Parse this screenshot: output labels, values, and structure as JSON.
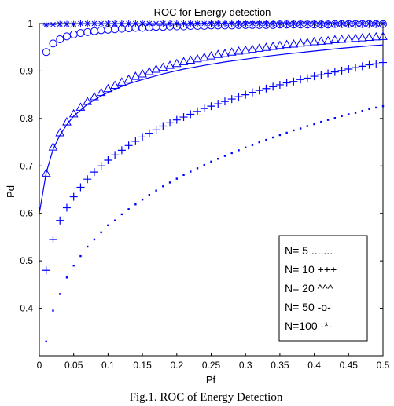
{
  "chart_data": {
    "type": "scatter",
    "title": "ROC for Energy detection",
    "xlabel": "Pf",
    "ylabel": "Pd",
    "xlim": [
      0,
      0.5
    ],
    "ylim": [
      0.3,
      1.0
    ],
    "xticks": [
      "0",
      "0.05",
      "0.1",
      "0.15",
      "0.2",
      "0.25",
      "0.3",
      "0.35",
      "0.4",
      "0.45",
      "0.5"
    ],
    "yticks": [
      "0.4",
      "0.5",
      "0.6",
      "0.7",
      "0.8",
      "0.9",
      "1"
    ],
    "legend_position": "bottom-right",
    "color": "#0000ff",
    "x": [
      0.01,
      0.02,
      0.03,
      0.04,
      0.05,
      0.06,
      0.07,
      0.08,
      0.09,
      0.1,
      0.11,
      0.12,
      0.13,
      0.14,
      0.15,
      0.16,
      0.17,
      0.18,
      0.19,
      0.2,
      0.21,
      0.22,
      0.23,
      0.24,
      0.25,
      0.26,
      0.27,
      0.28,
      0.29,
      0.3,
      0.31,
      0.32,
      0.33,
      0.34,
      0.35,
      0.36,
      0.37,
      0.38,
      0.39,
      0.4,
      0.41,
      0.42,
      0.43,
      0.44,
      0.45,
      0.46,
      0.47,
      0.48,
      0.49,
      0.5
    ],
    "series": [
      {
        "name": "N= 5 .......",
        "marker": "dot",
        "values": [
          0.33,
          0.395,
          0.43,
          0.465,
          0.49,
          0.51,
          0.53,
          0.545,
          0.56,
          0.575,
          0.585,
          0.598,
          0.609,
          0.619,
          0.629,
          0.639,
          0.648,
          0.657,
          0.665,
          0.673,
          0.681,
          0.688,
          0.695,
          0.702,
          0.709,
          0.715,
          0.721,
          0.727,
          0.733,
          0.739,
          0.744,
          0.75,
          0.755,
          0.76,
          0.765,
          0.77,
          0.775,
          0.779,
          0.784,
          0.788,
          0.793,
          0.797,
          0.801,
          0.805,
          0.809,
          0.812,
          0.816,
          0.82,
          0.823,
          0.826
        ]
      },
      {
        "name": "N= 10 +++",
        "marker": "plus",
        "values": [
          0.48,
          0.545,
          0.585,
          0.612,
          0.635,
          0.655,
          0.672,
          0.687,
          0.7,
          0.712,
          0.723,
          0.733,
          0.743,
          0.752,
          0.761,
          0.769,
          0.776,
          0.784,
          0.791,
          0.797,
          0.803,
          0.809,
          0.815,
          0.821,
          0.826,
          0.831,
          0.836,
          0.841,
          0.846,
          0.85,
          0.855,
          0.859,
          0.863,
          0.867,
          0.871,
          0.875,
          0.878,
          0.882,
          0.885,
          0.889,
          0.892,
          0.895,
          0.898,
          0.901,
          0.904,
          0.907,
          0.91,
          0.913,
          0.915,
          0.918
        ]
      },
      {
        "name": "N= 20 ^^^",
        "marker": "triangle",
        "values": [
          0.685,
          0.74,
          0.77,
          0.793,
          0.81,
          0.824,
          0.836,
          0.846,
          0.855,
          0.863,
          0.87,
          0.877,
          0.883,
          0.889,
          0.894,
          0.899,
          0.904,
          0.908,
          0.912,
          0.916,
          0.92,
          0.923,
          0.926,
          0.929,
          0.932,
          0.935,
          0.937,
          0.94,
          0.942,
          0.944,
          0.946,
          0.948,
          0.95,
          0.952,
          0.954,
          0.956,
          0.957,
          0.959,
          0.96,
          0.962,
          0.963,
          0.964,
          0.966,
          0.967,
          0.968,
          0.969,
          0.97,
          0.971,
          0.972,
          0.973
        ]
      },
      {
        "name": "N= 50 -o-",
        "marker": "circle",
        "values": [
          0.94,
          0.958,
          0.967,
          0.973,
          0.977,
          0.98,
          0.982,
          0.984,
          0.986,
          0.987,
          0.988,
          0.989,
          0.99,
          0.991,
          0.991,
          0.992,
          0.993,
          0.993,
          0.994,
          0.994,
          0.994,
          0.995,
          0.995,
          0.995,
          0.996,
          0.996,
          0.996,
          0.996,
          0.997,
          0.997,
          0.997,
          0.997,
          0.997,
          0.997,
          0.998,
          0.998,
          0.998,
          0.998,
          0.998,
          0.998,
          0.998,
          0.998,
          0.999,
          0.999,
          0.999,
          0.999,
          0.999,
          0.999,
          0.999,
          0.999
        ]
      },
      {
        "name": "N=100 -*-",
        "marker": "star",
        "values": [
          0.997,
          0.998,
          0.999,
          0.999,
          0.999,
          1.0,
          1.0,
          1.0,
          1.0,
          1.0,
          1.0,
          1.0,
          1.0,
          1.0,
          1.0,
          1.0,
          1.0,
          1.0,
          1.0,
          1.0,
          1.0,
          1.0,
          1.0,
          1.0,
          1.0,
          1.0,
          1.0,
          1.0,
          1.0,
          1.0,
          1.0,
          1.0,
          1.0,
          1.0,
          1.0,
          1.0,
          1.0,
          1.0,
          1.0,
          1.0,
          1.0,
          1.0,
          1.0,
          1.0,
          1.0,
          1.0,
          1.0,
          1.0,
          1.0,
          1.0
        ]
      }
    ],
    "reference_curve": {
      "x": [
        0.0,
        0.01,
        0.02,
        0.03,
        0.04,
        0.05,
        0.07,
        0.09,
        0.11,
        0.13,
        0.15,
        0.18,
        0.21,
        0.24,
        0.27,
        0.3,
        0.33,
        0.36,
        0.4,
        0.44,
        0.48,
        0.5
      ],
      "y": [
        0.6,
        0.685,
        0.735,
        0.765,
        0.787,
        0.805,
        0.83,
        0.848,
        0.862,
        0.873,
        0.882,
        0.894,
        0.904,
        0.912,
        0.919,
        0.925,
        0.931,
        0.936,
        0.942,
        0.948,
        0.953,
        0.955
      ]
    }
  },
  "caption": "Fig.1. ROC of Energy Detection"
}
